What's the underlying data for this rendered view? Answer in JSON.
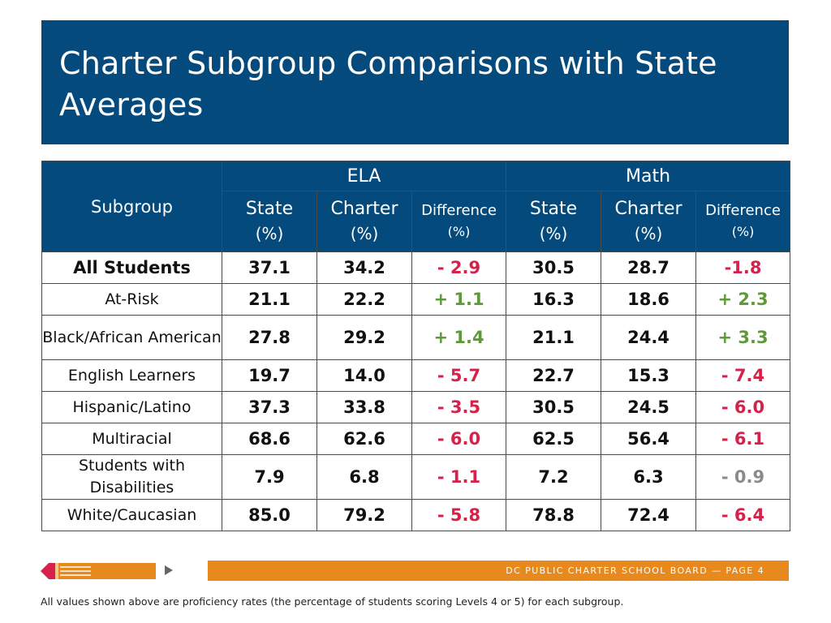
{
  "title": "Charter Subgroup Comparisons with State Averages",
  "table": {
    "subgroup_header": "Subgroup",
    "groups": [
      "ELA",
      "Math"
    ],
    "col_state": "State",
    "col_charter": "Charter",
    "col_difference": "Difference",
    "unit": "(%)",
    "rows": [
      {
        "label": "All Students",
        "ela_state": "37.1",
        "ela_charter": "34.2",
        "ela_diff": "- 2.9",
        "math_state": "30.5",
        "math_charter": "28.7",
        "math_diff": "-1.8"
      },
      {
        "label": "At-Risk",
        "ela_state": "21.1",
        "ela_charter": "22.2",
        "ela_diff": "+ 1.1",
        "math_state": "16.3",
        "math_charter": "18.6",
        "math_diff": "+ 2.3"
      },
      {
        "label": "Black/African American",
        "ela_state": "27.8",
        "ela_charter": "29.2",
        "ela_diff": "+ 1.4",
        "math_state": "21.1",
        "math_charter": "24.4",
        "math_diff": "+ 3.3"
      },
      {
        "label": "English Learners",
        "ela_state": "19.7",
        "ela_charter": "14.0",
        "ela_diff": "- 5.7",
        "math_state": "22.7",
        "math_charter": "15.3",
        "math_diff": "- 7.4"
      },
      {
        "label": "Hispanic/Latino",
        "ela_state": "37.3",
        "ela_charter": "33.8",
        "ela_diff": "- 3.5",
        "math_state": "30.5",
        "math_charter": "24.5",
        "math_diff": "- 6.0"
      },
      {
        "label": "Multiracial",
        "ela_state": "68.6",
        "ela_charter": "62.6",
        "ela_diff": "- 6.0",
        "math_state": "62.5",
        "math_charter": "56.4",
        "math_diff": "- 6.1"
      },
      {
        "label": "Students with Disabilities",
        "ela_state": "7.9",
        "ela_charter": "6.8",
        "ela_diff": "- 1.1",
        "math_state": "7.2",
        "math_charter": "6.3",
        "math_diff": "- 0.9"
      },
      {
        "label": "White/Caucasian",
        "ela_state": "85.0",
        "ela_charter": "79.2",
        "ela_diff": "- 5.8",
        "math_state": "78.8",
        "math_charter": "72.4",
        "math_diff": "- 6.4"
      }
    ]
  },
  "colors": {
    "header_blue": "#044a7c",
    "negative": "#d6224a",
    "positive": "#5e9a3a",
    "neutral": "#8a8a8a",
    "footer_orange": "#e8891d"
  },
  "footer": {
    "text": "DC PUBLIC CHARTER SCHOOL BOARD — PAGE 4",
    "logo_icon": "pencil-icon",
    "arrow_icon": "arrow-right-icon"
  },
  "note": "All values shown above are proficiency rates (the percentage of students scoring Levels 4 or 5) for each subgroup."
}
